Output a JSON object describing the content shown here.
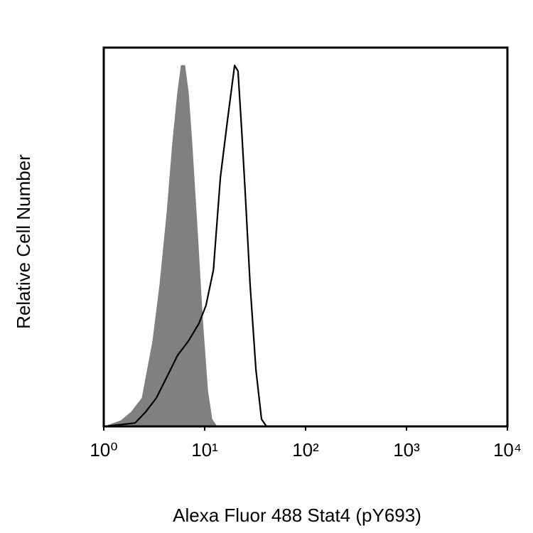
{
  "chart_data": {
    "type": "histogram-overlay",
    "xlabel": "Alexa Fluor 488 Stat4 (pY693)",
    "ylabel": "Relative Cell Number",
    "xscale": "log",
    "xlim": [
      1,
      10000
    ],
    "xticks": [
      {
        "value": 1,
        "label": "10⁰"
      },
      {
        "value": 10,
        "label": "10¹"
      },
      {
        "value": 100,
        "label": "10²"
      },
      {
        "value": 1000,
        "label": "10³"
      },
      {
        "value": 10000,
        "label": "10⁴"
      }
    ],
    "ylim": [
      0,
      100
    ],
    "series": [
      {
        "color": "#808080",
        "filled": true,
        "x": [
          1.03,
          1.48,
          1.88,
          2.4,
          3.06,
          3.6,
          4.23,
          4.82,
          5.4,
          5.86,
          6.35,
          6.89,
          7.47,
          8.51,
          9.52,
          10.7,
          11.8,
          13.2
        ],
        "values": [
          0,
          1.5,
          3.8,
          7.5,
          22.5,
          37.5,
          56.3,
          75,
          88.2,
          95.3,
          95.3,
          88.2,
          75,
          50.7,
          28.1,
          9.4,
          1.9,
          0
        ]
      },
      {
        "color": "#000000",
        "filled": false,
        "x": [
          1.03,
          2.04,
          2.6,
          3.32,
          4.23,
          5.4,
          6.89,
          8.79,
          10.3,
          12.2,
          14.3,
          16.8,
          19.8,
          21.4,
          23.2,
          25.2,
          28.2,
          32.2,
          36.6,
          41.0
        ],
        "values": [
          0,
          0.9,
          3.8,
          7.5,
          13.1,
          18.8,
          22.5,
          27.2,
          31.9,
          41.3,
          65.7,
          80.7,
          95.3,
          93.8,
          78.8,
          61.9,
          37.5,
          15,
          1.9,
          0
        ]
      }
    ]
  }
}
